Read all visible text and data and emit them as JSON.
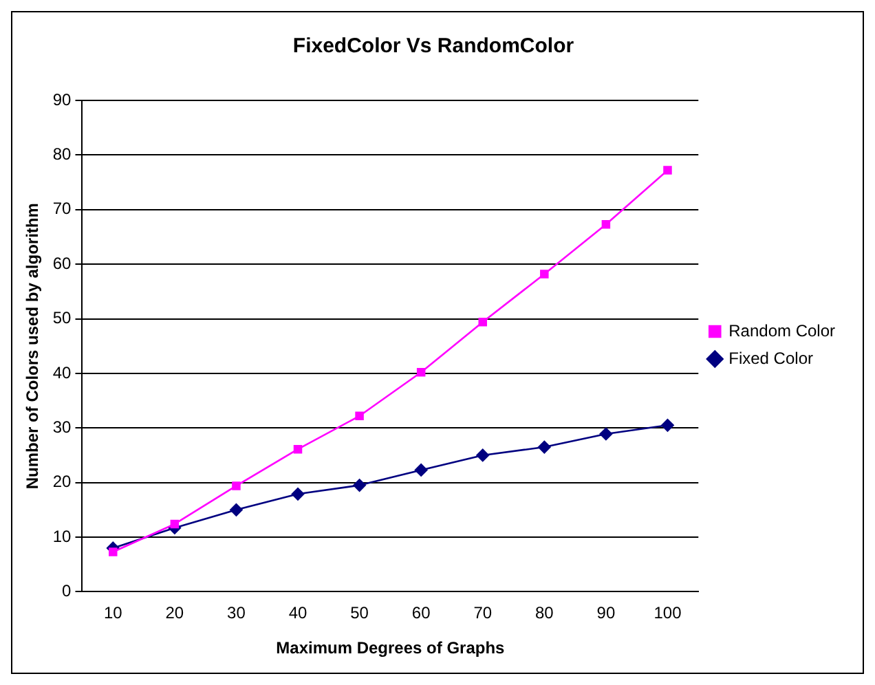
{
  "chart_data": {
    "type": "line",
    "title": "FixedColor Vs RandomColor",
    "xlabel": "Maximum Degrees of Graphs",
    "ylabel": "Number of Colors used by algorithm",
    "categories": [
      "10",
      "20",
      "30",
      "40",
      "50",
      "60",
      "70",
      "80",
      "90",
      "100"
    ],
    "series": [
      {
        "name": "Fixed Color",
        "color": "#000080",
        "marker": "diamond",
        "values": [
          8.0,
          11.7,
          15.0,
          17.9,
          19.5,
          22.3,
          25.0,
          26.5,
          28.9,
          30.5
        ]
      },
      {
        "name": "Random Color",
        "color": "#ff00ff",
        "marker": "square",
        "values": [
          7.3,
          12.4,
          19.4,
          26.1,
          32.2,
          40.2,
          49.4,
          58.2,
          67.3,
          77.2
        ]
      }
    ],
    "ylim": [
      0,
      90
    ],
    "yticks": [
      0,
      10,
      20,
      30,
      40,
      50,
      60,
      70,
      80,
      90
    ],
    "grid": "y",
    "legend": "right",
    "line_style": "solid"
  }
}
